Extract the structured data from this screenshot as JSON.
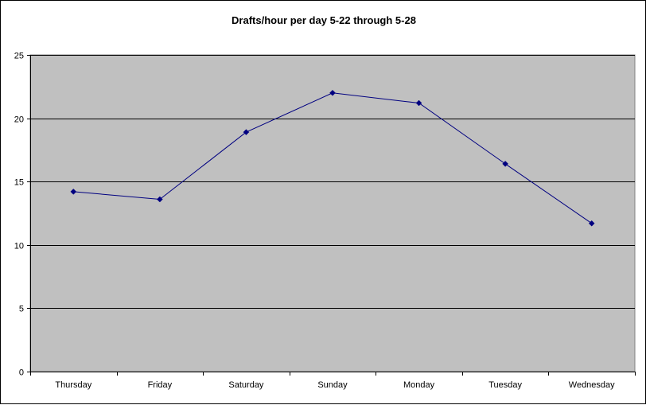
{
  "colors": {
    "plot_background": "#c0c0c0",
    "line": "#000080",
    "marker": "#000080",
    "gridline": "#000000",
    "page_background": "#ffffff"
  },
  "chart_data": {
    "type": "line",
    "title": "Drafts/hour per day 5-22 through 5-28",
    "xlabel": "",
    "ylabel": "",
    "categories": [
      "Thursday",
      "Friday",
      "Saturday",
      "Sunday",
      "Monday",
      "Tuesday",
      "Wednesday"
    ],
    "series": [
      {
        "values": [
          14.2,
          13.6,
          18.9,
          22.0,
          21.2,
          16.4,
          11.7
        ]
      }
    ],
    "ylim": [
      0,
      25
    ],
    "yticks": [
      0,
      5,
      10,
      15,
      20,
      25
    ],
    "grid": true,
    "legend": "none",
    "marker": "diamond"
  }
}
